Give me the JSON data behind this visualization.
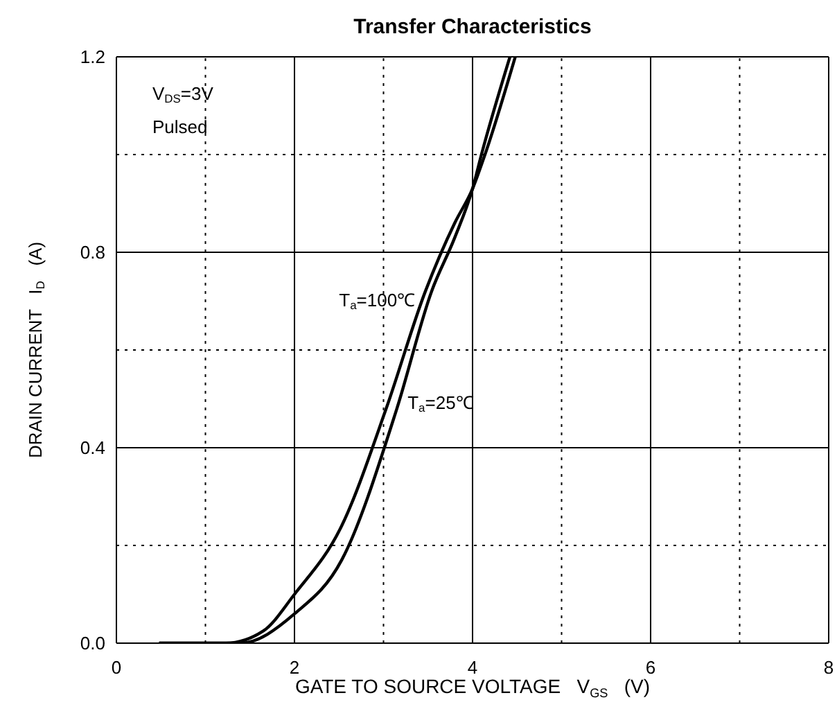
{
  "chart_data": {
    "type": "line",
    "title": "Transfer Characteristics",
    "xlabel": "GATE TO SOURCE VOLTAGE   V$_{GS}$   (V)",
    "ylabel": "DRAIN CURRENT   I$_{D}$   (A)",
    "xlim": [
      0,
      8
    ],
    "xticks": [
      0,
      {
        "value": 1,
        "label": null
      },
      2,
      {
        "value": 3,
        "label": null
      },
      4,
      {
        "value": 5,
        "label": null
      },
      6,
      {
        "value": 7,
        "label": null
      },
      8
    ],
    "ylim": [
      0,
      1.2
    ],
    "yticks": [
      {
        "value": 0,
        "label": "0.0"
      },
      {
        "value": 0.2,
        "label": null
      },
      {
        "value": 0.4,
        "label": "0.4"
      },
      {
        "value": 0.6,
        "label": null
      },
      {
        "value": 0.8,
        "label": "0.8"
      },
      {
        "value": 1.0,
        "label": null
      },
      {
        "value": 1.2,
        "label": "1.2"
      }
    ],
    "grid": true,
    "legend": false,
    "marker": "none",
    "line_style": "solid",
    "series": [
      {
        "name": "T$_{a}$=100℃",
        "color": "#000000",
        "x": [
          0.48,
          1.23,
          1.65,
          2.0,
          2.53,
          3.03,
          3.47,
          3.8,
          4.0,
          4.14,
          4.48
        ],
        "values": [
          0,
          0,
          0.025,
          0.1,
          0.24,
          0.48,
          0.72,
          0.86,
          0.93,
          1.0,
          1.2
        ]
      },
      {
        "name": "T$_{a}$=25℃",
        "color": "#000000",
        "x": [
          0.48,
          1.39,
          2.0,
          2.53,
          3.15,
          3.54,
          3.8,
          4.0,
          4.1,
          4.42
        ],
        "values": [
          0,
          0,
          0.06,
          0.17,
          0.48,
          0.72,
          0.83,
          0.93,
          1.0,
          1.2
        ]
      }
    ],
    "annotations": [
      "V$_{DS}$=3V",
      "Pulsed"
    ]
  }
}
